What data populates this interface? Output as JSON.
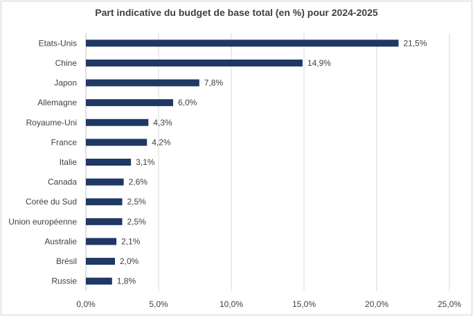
{
  "chart_data": {
    "type": "bar",
    "orientation": "horizontal",
    "title": "Part indicative du budget de base total (en %) pour 2024-2025",
    "categories": [
      "Etats-Unis",
      "Chine",
      "Japon",
      "Allemagne",
      "Royaume-Uni",
      "France",
      "Italie",
      "Canada",
      "Corée du Sud",
      "Union européenne",
      "Australie",
      "Brésil",
      "Russie"
    ],
    "values": [
      21.5,
      14.9,
      7.8,
      6.0,
      4.3,
      4.2,
      3.1,
      2.6,
      2.5,
      2.5,
      2.1,
      2.0,
      1.8
    ],
    "value_labels": [
      "21,5%",
      "14,9%",
      "7,8%",
      "6,0%",
      "4,3%",
      "4,2%",
      "3,1%",
      "2,6%",
      "2,5%",
      "2,5%",
      "2,1%",
      "2,0%",
      "1,8%"
    ],
    "xlim": [
      0,
      25
    ],
    "xticks": [
      0,
      5,
      10,
      15,
      20,
      25
    ],
    "xtick_labels": [
      "0,0%",
      "5,0%",
      "10,0%",
      "15,0%",
      "20,0%",
      "25,0%"
    ],
    "xlabel": "",
    "ylabel": "",
    "grid": "vertical",
    "legend": "none",
    "bar_color": "#1f3864"
  }
}
